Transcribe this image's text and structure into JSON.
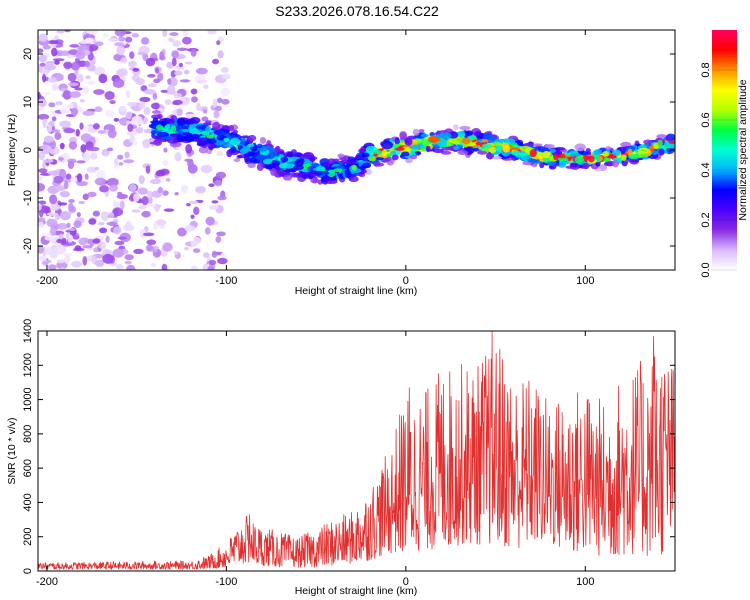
{
  "title": "S233.2026.078.16.54.C22",
  "chart_data": [
    {
      "type": "heatmap",
      "name": "spectrogram",
      "xlabel": "Height of straight line (km)",
      "ylabel": "Frequency (Hz)",
      "xlim": [
        -205,
        150
      ],
      "ylim": [
        -25,
        25
      ],
      "xticks": [
        -200,
        -100,
        0,
        100
      ],
      "yticks": [
        -20,
        -10,
        0,
        10,
        20
      ],
      "colorbar": {
        "label": "Normalized spectral amplitude",
        "range": [
          0.0,
          0.96
        ],
        "ticks": [
          0.0,
          0.2,
          0.4,
          0.6,
          0.8
        ],
        "colors": [
          "#ffffff",
          "#d8b8ff",
          "#8a2be2",
          "#4b00ff",
          "#0000ff",
          "#00b4ff",
          "#00ffd0",
          "#00ff40",
          "#b4ff00",
          "#ffff00",
          "#ff9000",
          "#ff0000",
          "#ff0060"
        ]
      },
      "ridge": {
        "x": [
          -140,
          -120,
          -100,
          -90,
          -80,
          -70,
          -60,
          -50,
          -40,
          -30,
          -20,
          -10,
          0,
          10,
          20,
          30,
          40,
          50,
          60,
          70,
          80,
          90,
          100,
          110,
          120,
          130,
          140,
          150
        ],
        "y": [
          4.5,
          4.0,
          2.0,
          0.5,
          -1.0,
          -2.5,
          -3.0,
          -4.0,
          -4.5,
          -4.0,
          -1.0,
          0.0,
          0.5,
          1.5,
          2.0,
          2.0,
          1.5,
          0.8,
          0.2,
          -0.8,
          -1.5,
          -1.8,
          -1.8,
          -1.5,
          -1.0,
          -0.5,
          0.5,
          1.5
        ]
      },
      "noise_region_x": [
        -205,
        -110
      ]
    },
    {
      "type": "line",
      "name": "snr",
      "xlabel": "Height of straight line (km)",
      "ylabel": "SNR (10 * v/v)",
      "xlim": [
        -205,
        150
      ],
      "ylim": [
        0,
        1400
      ],
      "xticks": [
        -200,
        -100,
        0,
        100
      ],
      "yticks": [
        0,
        200,
        400,
        600,
        800,
        1000,
        1200,
        1400
      ],
      "color": "#e03030",
      "envelope": {
        "x": [
          -205,
          -120,
          -110,
          -100,
          -90,
          -80,
          -70,
          -60,
          -50,
          -40,
          -30,
          -20,
          -10,
          0,
          10,
          20,
          30,
          40,
          50,
          60,
          70,
          80,
          90,
          100,
          110,
          120,
          130,
          140,
          150
        ],
        "max": [
          50,
          60,
          90,
          170,
          330,
          260,
          230,
          200,
          250,
          310,
          350,
          500,
          700,
          1050,
          1050,
          1200,
          1220,
          1220,
          1400,
          1150,
          1150,
          1000,
          1050,
          1100,
          1000,
          1150,
          1220,
          1370,
          1200
        ],
        "min": [
          10,
          10,
          10,
          20,
          40,
          30,
          20,
          20,
          20,
          30,
          40,
          60,
          100,
          100,
          120,
          120,
          150,
          150,
          150,
          120,
          150,
          150,
          100,
          100,
          80,
          80,
          100,
          50,
          200
        ]
      },
      "peaks": [
        {
          "x": 48,
          "y": 1400
        },
        {
          "x": 138,
          "y": 1370
        },
        {
          "x": 2,
          "y": 1070
        },
        {
          "x": -87,
          "y": 330
        }
      ]
    }
  ]
}
